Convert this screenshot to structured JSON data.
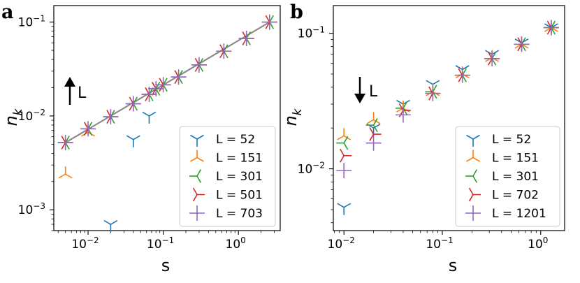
{
  "chart_data": [
    {
      "panel": "a",
      "type": "scatter",
      "xlabel": "s",
      "ylabel": "n_k",
      "xscale": "log",
      "yscale": "log",
      "xlim": [
        0.0035,
        3.6
      ],
      "ylim": [
        0.0006,
        0.15
      ],
      "xticks": [
        {
          "v": 0.01,
          "label": "10^-2"
        },
        {
          "v": 0.1,
          "label": "10^-1"
        },
        {
          "v": 1,
          "label": "10^0"
        }
      ],
      "yticks": [
        {
          "v": 0.001,
          "label": "10^-3"
        },
        {
          "v": 0.01,
          "label": "10^-2"
        },
        {
          "v": 0.1,
          "label": "10^-1"
        }
      ],
      "arrow": {
        "direction": "up",
        "label": "L"
      },
      "legend_position": "lower-right",
      "fit_line": {
        "x": [
          0.005,
          2.6
        ],
        "y": [
          0.0052,
          0.1
        ]
      },
      "series": [
        {
          "name": "L = 52",
          "marker": "tri_down",
          "color": "#1f77b4",
          "x": [
            0.02,
            0.04,
            0.065
          ],
          "y": [
            0.0007,
            0.0056,
            0.01
          ]
        },
        {
          "name": "L = 151",
          "marker": "tri_up",
          "color": "#ff7f0e",
          "x": [
            0.005,
            0.01
          ],
          "y": [
            0.0024,
            0.0067
          ]
        },
        {
          "name": "L = 301",
          "marker": "tri_left",
          "color": "#2ca02c",
          "x": [
            0.005,
            0.01,
            0.02,
            0.04,
            0.065,
            0.08,
            0.1,
            0.16,
            0.3,
            0.64,
            1.28,
            2.6
          ],
          "y": [
            0.0052,
            0.0073,
            0.0098,
            0.0135,
            0.017,
            0.0195,
            0.0215,
            0.026,
            0.035,
            0.049,
            0.067,
            0.1
          ]
        },
        {
          "name": "L = 501",
          "marker": "tri_right",
          "color": "#d62728",
          "x": [
            0.005,
            0.01,
            0.02,
            0.04,
            0.065,
            0.08,
            0.1,
            0.16,
            0.3,
            0.64,
            1.28,
            2.6
          ],
          "y": [
            0.0052,
            0.0073,
            0.0098,
            0.0135,
            0.017,
            0.0195,
            0.0215,
            0.026,
            0.035,
            0.049,
            0.067,
            0.1
          ]
        },
        {
          "name": "L = 703",
          "marker": "plus",
          "color": "#9467bd",
          "x": [
            0.005,
            0.01,
            0.02,
            0.04,
            0.065,
            0.08,
            0.1,
            0.16,
            0.3,
            0.64,
            1.28,
            2.6
          ],
          "y": [
            0.0052,
            0.0073,
            0.0098,
            0.0135,
            0.017,
            0.0195,
            0.0215,
            0.026,
            0.035,
            0.049,
            0.067,
            0.1
          ]
        }
      ]
    },
    {
      "panel": "b",
      "type": "scatter",
      "xlabel": "s",
      "ylabel": "n_k",
      "xscale": "log",
      "yscale": "log",
      "xlim": [
        0.0078,
        1.75
      ],
      "ylim": [
        0.0035,
        0.16
      ],
      "xticks": [
        {
          "v": 0.01,
          "label": "10^-2"
        },
        {
          "v": 0.1,
          "label": "10^-1"
        },
        {
          "v": 1,
          "label": "10^0"
        }
      ],
      "yticks": [
        {
          "v": 0.01,
          "label": "10^-2"
        },
        {
          "v": 0.1,
          "label": "10^-1"
        }
      ],
      "arrow": {
        "direction": "down",
        "label": "L"
      },
      "legend_position": "lower-right",
      "series": [
        {
          "name": "L = 52",
          "marker": "tri_down",
          "color": "#1f77b4",
          "x": [
            0.01,
            0.02,
            0.04,
            0.08,
            0.16,
            0.32,
            0.64,
            1.28
          ],
          "y": [
            0.0052,
            0.02,
            0.03,
            0.042,
            0.054,
            0.07,
            0.085,
            0.11
          ]
        },
        {
          "name": "L = 151",
          "marker": "tri_up",
          "color": "#ff7f0e",
          "x": [
            0.01,
            0.02,
            0.04,
            0.08,
            0.16,
            0.32,
            0.64,
            1.28
          ],
          "y": [
            0.0175,
            0.023,
            0.028,
            0.037,
            0.05,
            0.066,
            0.083,
            0.11
          ]
        },
        {
          "name": "L = 301",
          "marker": "tri_left",
          "color": "#2ca02c",
          "x": [
            0.01,
            0.02,
            0.04,
            0.08,
            0.16,
            0.32,
            0.64,
            1.28
          ],
          "y": [
            0.0155,
            0.021,
            0.028,
            0.037,
            0.049,
            0.065,
            0.083,
            0.11
          ]
        },
        {
          "name": "L = 702",
          "marker": "tri_right",
          "color": "#d62728",
          "x": [
            0.01,
            0.02,
            0.04,
            0.08,
            0.16,
            0.32,
            0.64,
            1.28
          ],
          "y": [
            0.0125,
            0.018,
            0.027,
            0.036,
            0.049,
            0.065,
            0.083,
            0.11
          ]
        },
        {
          "name": "L = 1201",
          "marker": "plus",
          "color": "#9467bd",
          "x": [
            0.01,
            0.02,
            0.04,
            0.08,
            0.16,
            0.32,
            0.64,
            1.28
          ],
          "y": [
            0.0097,
            0.0155,
            0.025,
            0.036,
            0.049,
            0.065,
            0.083,
            0.11
          ]
        }
      ]
    }
  ],
  "labels": {
    "panel_a": "a",
    "panel_b": "b",
    "xlabel": "s",
    "ylabel_main": "n",
    "ylabel_sub": "k",
    "arrow_label": "L"
  }
}
